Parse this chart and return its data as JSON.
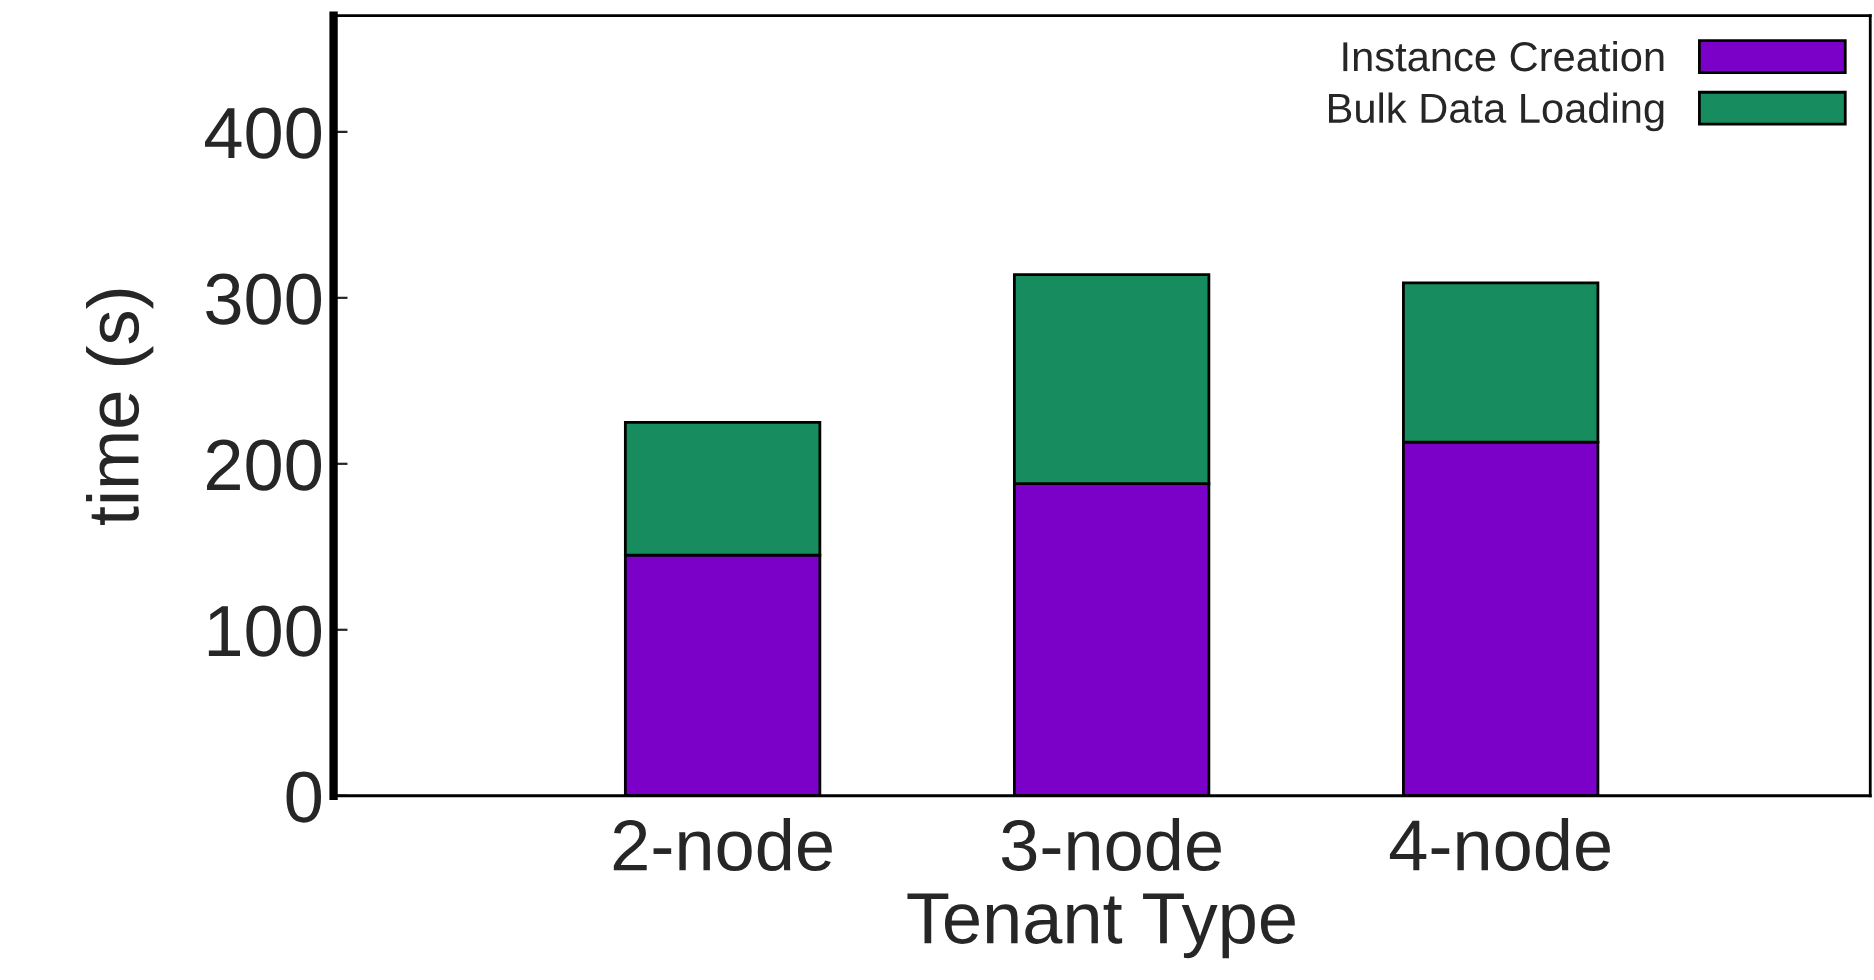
{
  "chart_data": {
    "type": "bar",
    "stacked": true,
    "xlabel": "Tenant Type",
    "ylabel": "time (s)",
    "categories": [
      "2-node",
      "3-node",
      "4-node"
    ],
    "series": [
      {
        "name": "Instance Creation",
        "color": "#7b00c8",
        "values": [
          145,
          188,
          213
        ]
      },
      {
        "name": "Bulk Data Loading",
        "color": "#168c5f",
        "values": [
          80,
          126,
          96
        ]
      }
    ],
    "ylim": [
      0,
      470
    ],
    "yticks": [
      0,
      100,
      200,
      300,
      400
    ],
    "grid": false,
    "legend": "top right"
  }
}
